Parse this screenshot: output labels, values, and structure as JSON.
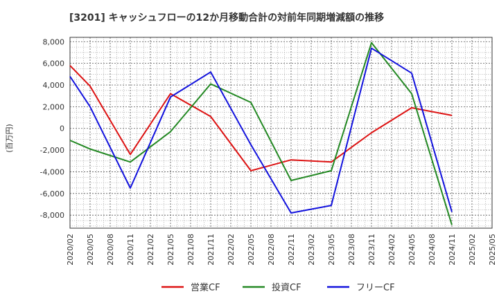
{
  "chart_data": {
    "type": "line",
    "title": "[3201]  キャッシュフローの12か月移動合計の対前年同期増減額の推移",
    "ylabel": "(百万円)",
    "xlabel": "",
    "categories": [
      "2020/02",
      "2020/05",
      "2020/08",
      "2020/11",
      "2021/02",
      "2021/05",
      "2021/08",
      "2021/11",
      "2022/02",
      "2022/05",
      "2022/08",
      "2022/11",
      "2023/02",
      "2023/05",
      "2023/08",
      "2023/11",
      "2024/02",
      "2024/05",
      "2024/08",
      "2024/11",
      "2025/02",
      "2025/05"
    ],
    "y_ticks": [
      8000,
      6000,
      4000,
      2000,
      0,
      -2000,
      -4000,
      -6000,
      -8000
    ],
    "y_tick_labels": [
      "8,000",
      "6,000",
      "4,000",
      "2,000",
      "0",
      "-2,000",
      "-4,000",
      "-6,000",
      "-8,000"
    ],
    "ylim": [
      -9200,
      8400
    ],
    "grid": true,
    "legend_position": "bottom",
    "series": [
      {
        "name": "営業CF",
        "color": "#dd1111",
        "values": [
          5800,
          3900,
          null,
          -2400,
          null,
          3200,
          null,
          1100,
          null,
          -3900,
          null,
          -2900,
          null,
          -3100,
          null,
          -400,
          null,
          1900,
          null,
          1200,
          null,
          null
        ]
      },
      {
        "name": "投資CF",
        "color": "#228822",
        "values": [
          -1100,
          -1900,
          null,
          -3100,
          null,
          -300,
          null,
          4100,
          null,
          2400,
          null,
          -4800,
          null,
          -3900,
          null,
          7900,
          null,
          3200,
          null,
          -8900,
          null,
          null
        ]
      },
      {
        "name": "フリーCF",
        "color": "#1111dd",
        "values": [
          4800,
          2000,
          null,
          -5500,
          null,
          2900,
          null,
          5200,
          null,
          -1500,
          null,
          -7800,
          null,
          -7100,
          null,
          7400,
          null,
          5100,
          null,
          -7700,
          null,
          null
        ]
      }
    ]
  }
}
